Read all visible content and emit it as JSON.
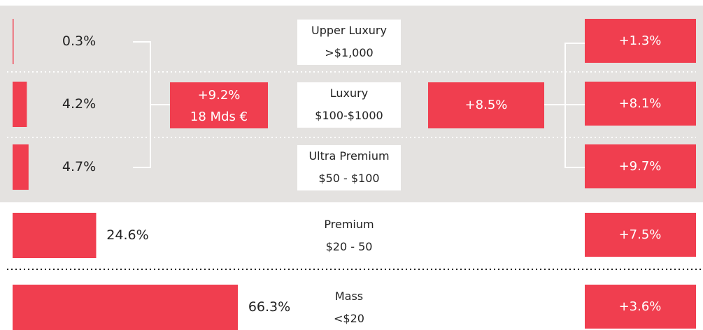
{
  "segments": [
    {
      "name": "Upper Luxury",
      "range": ">$1,000",
      "share": 0.3,
      "share_label": "0.3%",
      "growth": "+1.3%"
    },
    {
      "name": "Luxury",
      "range": "$100-$1000",
      "share": 4.2,
      "share_label": "4.2%",
      "growth": "+8.1%"
    },
    {
      "name": "Ultra Premium",
      "range": "$50 - $100",
      "share": 4.7,
      "share_label": "4.7%",
      "growth": "+9.7%"
    },
    {
      "name": "Premium",
      "range": "$20 - 50",
      "share": 24.6,
      "share_label": "24.6%",
      "growth": "+7.5%"
    },
    {
      "name": "Mass",
      "range": "<$20",
      "share": 66.3,
      "share_label": "66.3%",
      "growth": "+3.6%"
    }
  ],
  "luxury_group": {
    "growth": "+9.2%",
    "size": "18 Mds €",
    "combined_growth": "+8.5%"
  },
  "color": "#f03e4f"
}
